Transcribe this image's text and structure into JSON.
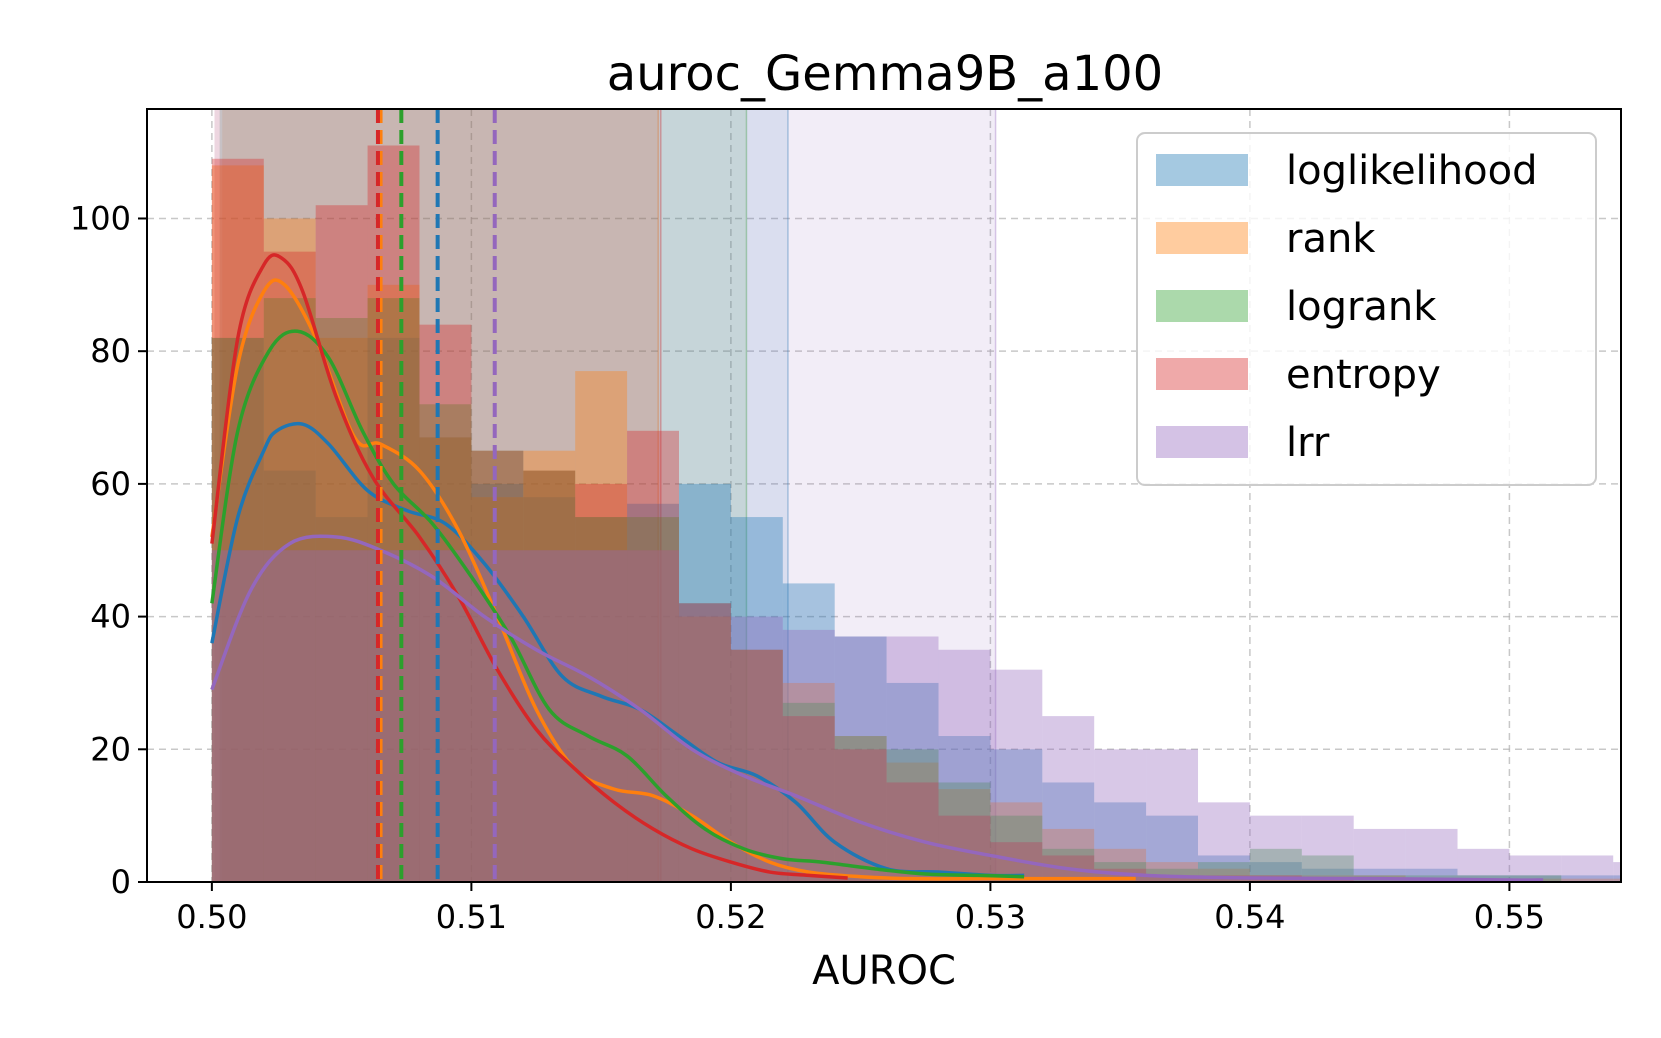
{
  "chart_data": {
    "type": "histogram-kde",
    "title": "auroc_Gemma9B_a100",
    "xlabel": "AUROC",
    "ylabel": "",
    "xlim": [
      0.4975,
      0.5543
    ],
    "ylim": [
      0,
      116.5
    ],
    "x_ticks": [
      0.5,
      0.51,
      0.52,
      0.53,
      0.54,
      0.55
    ],
    "x_tick_labels": [
      "0.50",
      "0.51",
      "0.52",
      "0.53",
      "0.54",
      "0.55"
    ],
    "y_ticks": [
      0,
      20,
      40,
      60,
      80,
      100
    ],
    "y_tick_labels": [
      "0",
      "20",
      "40",
      "60",
      "80",
      "100"
    ],
    "grid": true,
    "legend_position": "top-right",
    "bin_width": 0.002,
    "series": [
      {
        "name": "loglikelihood",
        "color": "#1f77b4",
        "bin_start": 0.5,
        "hist": [
          82,
          62,
          55,
          82,
          67,
          60,
          58,
          55,
          57,
          60,
          55,
          45,
          37,
          30,
          22,
          20,
          15,
          12,
          10,
          4,
          3,
          2,
          2,
          2,
          1,
          1,
          1,
          1,
          3,
          1,
          1
        ],
        "kde_x": [
          0.5,
          0.501,
          0.502,
          0.5025,
          0.5035,
          0.5045,
          0.506,
          0.5075,
          0.509,
          0.5105,
          0.512,
          0.5135,
          0.515,
          0.5165,
          0.518,
          0.5195,
          0.521,
          0.5225,
          0.524,
          0.526,
          0.528,
          0.53,
          0.5313
        ],
        "kde_y": [
          36,
          55,
          65,
          68,
          69,
          66,
          59,
          56,
          54,
          48,
          40,
          31,
          28,
          26,
          22,
          18,
          16,
          12,
          6,
          2,
          1.5,
          1,
          1
        ],
        "mean": 0.5087,
        "ci": [
          0.5003,
          0.5222
        ]
      },
      {
        "name": "rank",
        "color": "#ff7f0e",
        "bin_start": 0.5,
        "hist": [
          108,
          100,
          82,
          90,
          67,
          58,
          65,
          77,
          50,
          40,
          35,
          30,
          22,
          18,
          14,
          12,
          8,
          5,
          3,
          2,
          1,
          1,
          1,
          0.5,
          0.5,
          0.5,
          0.5,
          0.5,
          0.5,
          0.5,
          0.5,
          0.5,
          0.5,
          0.5,
          0.5,
          0.5
        ],
        "kde_x": [
          0.5,
          0.501,
          0.502,
          0.5028,
          0.504,
          0.5055,
          0.5065,
          0.508,
          0.5095,
          0.511,
          0.5125,
          0.514,
          0.5155,
          0.517,
          0.5185,
          0.52,
          0.5215,
          0.523,
          0.525,
          0.527,
          0.53,
          0.533,
          0.5356
        ],
        "kde_y": [
          52,
          78,
          89,
          90,
          82,
          67,
          66,
          62,
          53,
          40,
          26,
          17,
          14,
          13,
          10,
          6,
          3,
          1.5,
          0.8,
          0.5,
          0.5,
          0.5,
          0.5
        ],
        "mean": 0.5065,
        "ci": [
          0.5004,
          0.5172
        ]
      },
      {
        "name": "logrank",
        "color": "#2ca02c",
        "bin_start": 0.5,
        "hist": [
          82,
          88,
          85,
          88,
          72,
          65,
          62,
          55,
          55,
          42,
          35,
          27,
          22,
          20,
          15,
          10,
          5,
          3,
          2,
          3,
          5,
          4,
          1,
          1,
          1,
          1
        ],
        "kde_x": [
          0.5,
          0.501,
          0.5022,
          0.5033,
          0.5045,
          0.5058,
          0.507,
          0.5085,
          0.51,
          0.5115,
          0.513,
          0.5145,
          0.516,
          0.5175,
          0.519,
          0.5205,
          0.522,
          0.5235,
          0.5255,
          0.5275,
          0.5295,
          0.5313
        ],
        "kde_y": [
          42,
          68,
          80,
          83,
          79,
          68,
          60,
          54,
          46,
          37,
          26,
          22,
          19,
          13,
          8,
          5,
          3.5,
          3,
          2,
          1.2,
          1,
          0.8
        ],
        "mean": 0.5073,
        "ci": [
          0.5003,
          0.5206
        ]
      },
      {
        "name": "entropy",
        "color": "#d62728",
        "bin_start": 0.5,
        "hist": [
          109,
          95,
          102,
          111,
          84,
          65,
          62,
          60,
          68,
          42,
          35,
          25,
          20,
          15,
          10,
          6,
          4,
          2,
          1,
          1,
          1,
          0.5
        ],
        "kde_x": [
          0.5,
          0.501,
          0.502,
          0.5027,
          0.5035,
          0.5048,
          0.5062,
          0.508,
          0.5095,
          0.511,
          0.5125,
          0.514,
          0.5155,
          0.517,
          0.5185,
          0.52,
          0.5215,
          0.523,
          0.5245
        ],
        "kde_y": [
          51,
          82,
          93,
          94,
          89,
          73,
          61,
          52,
          43,
          32,
          23,
          17,
          12,
          8,
          5,
          3,
          1.5,
          1,
          0.6
        ],
        "mean": 0.5064,
        "ci": [
          0.5001,
          0.5173
        ]
      },
      {
        "name": "lrr",
        "color": "#9467bd",
        "bin_start": 0.5,
        "hist": [
          50,
          50,
          50,
          50,
          50,
          50,
          50,
          50,
          50,
          42,
          40,
          38,
          37,
          37,
          35,
          32,
          25,
          20,
          20,
          12,
          10,
          10,
          8,
          8,
          5,
          4,
          4,
          3,
          3,
          2,
          2,
          2,
          2,
          1,
          1,
          1,
          1,
          1,
          1,
          1,
          1,
          1,
          0.5,
          0.5,
          0.5,
          0.5,
          0.5,
          0.5,
          0.5,
          0.5,
          0.5,
          0.5,
          0.5,
          0.5,
          0.5,
          0.5
        ],
        "kde_x": [
          0.5,
          0.5015,
          0.503,
          0.5048,
          0.5065,
          0.5085,
          0.5105,
          0.5125,
          0.5145,
          0.5165,
          0.5185,
          0.5205,
          0.5225,
          0.525,
          0.5275,
          0.53,
          0.533,
          0.536,
          0.54,
          0.545,
          0.55,
          0.5513
        ],
        "kde_y": [
          29,
          44,
          51,
          52,
          50,
          46,
          40,
          35,
          31,
          26,
          20,
          16,
          13,
          9,
          6,
          4,
          2,
          1,
          0.6,
          0.5,
          0.3,
          0.3
        ],
        "mean": 0.5109,
        "ci": [
          0.5001,
          0.5302
        ]
      }
    ]
  }
}
